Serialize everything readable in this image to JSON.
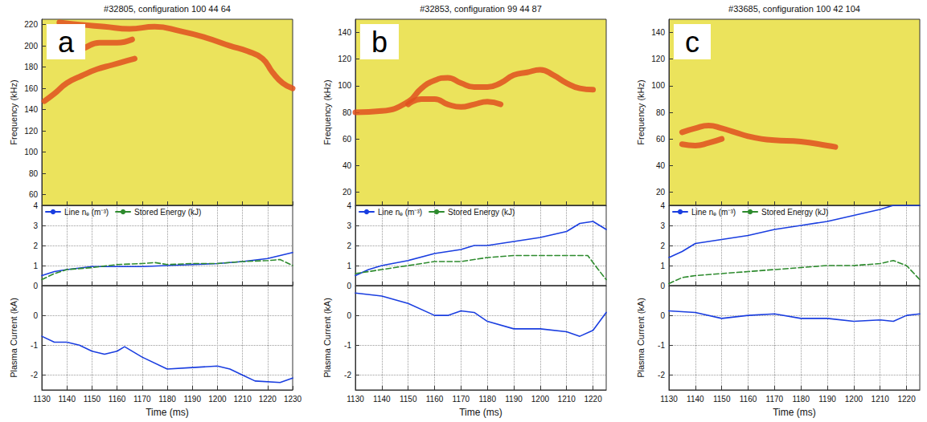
{
  "chart_data": [
    {
      "type": "spectrogram",
      "title": "#32805, configuration 100 44 64",
      "annotations": [
        "a"
      ],
      "ylabel": "Frequency (kHz)",
      "xlim": [
        1130,
        1230
      ],
      "xticks": [
        1130,
        1140,
        1150,
        1160,
        1170,
        1180,
        1190,
        1200,
        1210,
        1220,
        1230
      ],
      "ylim": [
        50,
        225
      ],
      "yticks": [
        60,
        80,
        100,
        120,
        140,
        160,
        180,
        200,
        220
      ],
      "grid": false,
      "tick_labels": "y",
      "series": [
        {
          "color": "#e0501e",
          "line_style": "solid",
          "marker": "none",
          "x": [
            1137,
            1145,
            1155,
            1165,
            1175,
            1185,
            1195,
            1205,
            1212,
            1218,
            1222,
            1226,
            1230
          ],
          "values": [
            222,
            220,
            218,
            216,
            218,
            214,
            208,
            200,
            195,
            188,
            175,
            165,
            160
          ]
        },
        {
          "color": "#e0501e",
          "line_style": "solid",
          "marker": "none",
          "x": [
            1140,
            1147,
            1153,
            1160,
            1166
          ],
          "values": [
            190,
            198,
            203,
            203,
            206
          ]
        },
        {
          "color": "#e0501e",
          "line_style": "solid",
          "marker": "none",
          "x": [
            1131,
            1135,
            1140,
            1146,
            1152,
            1158,
            1164,
            1167
          ],
          "values": [
            148,
            155,
            165,
            172,
            178,
            182,
            186,
            188
          ]
        }
      ]
    },
    {
      "type": "line",
      "xlim": [
        1130,
        1230
      ],
      "xticks": [
        1130,
        1140,
        1150,
        1160,
        1170,
        1180,
        1190,
        1200,
        1210,
        1220,
        1230
      ],
      "ylim": [
        0,
        4
      ],
      "yticks": [
        0,
        1,
        2,
        3,
        4
      ],
      "grid": true,
      "tick_labels": "y",
      "legend": "upper left",
      "series": [
        {
          "name": "Line nₑ (m⁻³)",
          "color": "#1a3ee0",
          "line_style": "solid",
          "marker": "none",
          "x": [
            1130,
            1135,
            1140,
            1150,
            1160,
            1170,
            1180,
            1190,
            1200,
            1210,
            1220,
            1230
          ],
          "values": [
            0.5,
            0.7,
            0.8,
            0.95,
            0.95,
            0.95,
            1.0,
            1.05,
            1.1,
            1.2,
            1.35,
            1.65
          ]
        },
        {
          "name": "Stored Energy (kJ)",
          "color": "#2e8b2e",
          "line_style": "dashed",
          "marker": "none",
          "x": [
            1130,
            1135,
            1140,
            1150,
            1160,
            1170,
            1175,
            1180,
            1190,
            1200,
            1210,
            1220,
            1225,
            1230
          ],
          "values": [
            0.3,
            0.6,
            0.8,
            0.9,
            1.05,
            1.1,
            1.15,
            1.05,
            1.1,
            1.1,
            1.2,
            1.25,
            1.3,
            1.0
          ]
        }
      ]
    },
    {
      "type": "line",
      "xlabel": "Time (ms)",
      "ylabel": "Plasma Current (kA)",
      "xlim": [
        1130,
        1230
      ],
      "xticks": [
        1130,
        1140,
        1150,
        1160,
        1170,
        1180,
        1190,
        1200,
        1210,
        1220,
        1230
      ],
      "ylim": [
        -2.5,
        1
      ],
      "yticks": [
        -2,
        -1,
        0
      ],
      "grid": true,
      "series": [
        {
          "color": "#1a3ee0",
          "line_style": "solid",
          "marker": "none",
          "x": [
            1130,
            1135,
            1140,
            1145,
            1150,
            1155,
            1160,
            1163,
            1170,
            1180,
            1190,
            1200,
            1205,
            1210,
            1215,
            1225,
            1230
          ],
          "values": [
            -0.7,
            -0.9,
            -0.9,
            -1.0,
            -1.2,
            -1.3,
            -1.2,
            -1.05,
            -1.4,
            -1.8,
            -1.75,
            -1.7,
            -1.8,
            -2.0,
            -2.2,
            -2.25,
            -2.1
          ]
        }
      ]
    },
    {
      "type": "spectrogram",
      "title": "#32853, configuration 99 44 87",
      "annotations": [
        "b"
      ],
      "ylabel": "Frequency (kHz)",
      "xlim": [
        1130,
        1225
      ],
      "xticks": [
        1130,
        1140,
        1150,
        1160,
        1170,
        1180,
        1190,
        1200,
        1210,
        1220
      ],
      "ylim": [
        10,
        150
      ],
      "yticks": [
        20,
        40,
        60,
        80,
        100,
        120,
        140
      ],
      "grid": false,
      "tick_labels": "y",
      "series": [
        {
          "color": "#e0501e",
          "line_style": "solid",
          "marker": "none",
          "x": [
            1130,
            1140,
            1150,
            1155,
            1160,
            1165,
            1170,
            1175,
            1180,
            1185,
            1190,
            1195,
            1200,
            1205,
            1210,
            1215,
            1220
          ],
          "values": [
            80,
            81,
            88,
            98,
            104,
            106,
            102,
            99,
            99,
            102,
            108,
            110,
            112,
            108,
            102,
            98,
            97
          ]
        },
        {
          "color": "#e0501e",
          "line_style": "solid",
          "marker": "none",
          "x": [
            1150,
            1155,
            1160,
            1165,
            1170,
            1175,
            1180,
            1185
          ],
          "values": [
            86,
            90,
            90,
            86,
            84,
            86,
            88,
            86
          ]
        }
      ]
    },
    {
      "type": "line",
      "xlim": [
        1130,
        1225
      ],
      "xticks": [
        1130,
        1140,
        1150,
        1160,
        1170,
        1180,
        1190,
        1200,
        1210,
        1220
      ],
      "ylim": [
        0,
        4
      ],
      "yticks": [
        0,
        1,
        2,
        3,
        4
      ],
      "grid": true,
      "tick_labels": "y",
      "legend": "upper left",
      "series": [
        {
          "name": "Line nₑ (m⁻³)",
          "color": "#1a3ee0",
          "line_style": "solid",
          "marker": "none",
          "x": [
            1130,
            1135,
            1140,
            1150,
            1160,
            1170,
            1175,
            1180,
            1190,
            1200,
            1210,
            1215,
            1220,
            1225
          ],
          "values": [
            0.5,
            0.8,
            1.0,
            1.25,
            1.6,
            1.8,
            2.0,
            2.0,
            2.2,
            2.4,
            2.7,
            3.1,
            3.2,
            2.8
          ]
        },
        {
          "name": "Stored Energy (kJ)",
          "color": "#2e8b2e",
          "line_style": "dashed",
          "marker": "none",
          "x": [
            1130,
            1140,
            1150,
            1160,
            1170,
            1180,
            1190,
            1200,
            1210,
            1218,
            1222,
            1225
          ],
          "values": [
            0.6,
            0.8,
            1.0,
            1.2,
            1.2,
            1.4,
            1.5,
            1.5,
            1.5,
            1.5,
            0.8,
            0.3
          ]
        }
      ]
    },
    {
      "type": "line",
      "xlabel": "Time (ms)",
      "ylabel": "Plasma Current (kA)",
      "xlim": [
        1130,
        1225
      ],
      "xticks": [
        1130,
        1140,
        1150,
        1160,
        1170,
        1180,
        1190,
        1200,
        1210,
        1220
      ],
      "ylim": [
        -2.5,
        1
      ],
      "yticks": [
        -2,
        -1,
        0
      ],
      "grid": true,
      "series": [
        {
          "color": "#1a3ee0",
          "line_style": "solid",
          "marker": "none",
          "x": [
            1130,
            1140,
            1150,
            1160,
            1165,
            1170,
            1175,
            1180,
            1190,
            1200,
            1210,
            1215,
            1220,
            1225
          ],
          "values": [
            0.75,
            0.65,
            0.4,
            0.0,
            0.0,
            0.15,
            0.1,
            -0.2,
            -0.45,
            -0.45,
            -0.55,
            -0.7,
            -0.5,
            0.1
          ]
        }
      ]
    },
    {
      "type": "spectrogram",
      "title": "#33685, configuration 100 42 104",
      "annotations": [
        "c"
      ],
      "ylabel": "Frequency (kHz)",
      "xlim": [
        1130,
        1225
      ],
      "xticks": [
        1130,
        1140,
        1150,
        1160,
        1170,
        1180,
        1190,
        1200,
        1210,
        1220
      ],
      "ylim": [
        10,
        150
      ],
      "yticks": [
        20,
        40,
        60,
        80,
        100,
        120,
        140
      ],
      "grid": false,
      "tick_labels": "y",
      "series": [
        {
          "color": "#e0501e",
          "line_style": "solid",
          "marker": "none",
          "x": [
            1135,
            1140,
            1145,
            1150,
            1155,
            1160,
            1165,
            1170,
            1180,
            1190,
            1193
          ],
          "values": [
            65,
            68,
            70,
            68,
            65,
            62,
            60,
            59,
            58,
            55,
            54
          ]
        },
        {
          "color": "#e0501e",
          "line_style": "solid",
          "marker": "none",
          "x": [
            1135,
            1140,
            1145,
            1150
          ],
          "values": [
            56,
            55,
            57,
            60
          ]
        }
      ]
    },
    {
      "type": "line",
      "xlim": [
        1130,
        1225
      ],
      "xticks": [
        1130,
        1140,
        1150,
        1160,
        1170,
        1180,
        1190,
        1200,
        1210,
        1220
      ],
      "ylim": [
        0,
        4
      ],
      "yticks": [
        0,
        1,
        2,
        3,
        4
      ],
      "grid": true,
      "tick_labels": "y",
      "legend": "upper left",
      "series": [
        {
          "name": "Line nₑ (m⁻³)",
          "color": "#1a3ee0",
          "line_style": "solid",
          "marker": "none",
          "x": [
            1130,
            1135,
            1140,
            1150,
            1160,
            1170,
            1180,
            1190,
            1200,
            1210,
            1215,
            1225
          ],
          "values": [
            1.4,
            1.7,
            2.1,
            2.3,
            2.5,
            2.8,
            3.0,
            3.2,
            3.5,
            3.8,
            4.0,
            4.0
          ]
        },
        {
          "name": "Stored Energy (kJ)",
          "color": "#2e8b2e",
          "line_style": "dashed",
          "marker": "none",
          "x": [
            1130,
            1135,
            1140,
            1150,
            1160,
            1170,
            1180,
            1190,
            1200,
            1210,
            1215,
            1220,
            1225
          ],
          "values": [
            0.1,
            0.4,
            0.5,
            0.6,
            0.7,
            0.8,
            0.9,
            1.0,
            1.0,
            1.1,
            1.25,
            1.0,
            0.3
          ]
        }
      ]
    },
    {
      "type": "line",
      "xlabel": "Time (ms)",
      "ylabel": "Plasma Current (kA)",
      "xlim": [
        1130,
        1225
      ],
      "xticks": [
        1130,
        1140,
        1150,
        1160,
        1170,
        1180,
        1190,
        1200,
        1210,
        1220
      ],
      "ylim": [
        -2.5,
        1
      ],
      "yticks": [
        -2,
        -1,
        0
      ],
      "grid": true,
      "series": [
        {
          "color": "#1a3ee0",
          "line_style": "solid",
          "marker": "none",
          "x": [
            1130,
            1140,
            1150,
            1160,
            1170,
            1180,
            1190,
            1200,
            1210,
            1215,
            1220,
            1225
          ],
          "values": [
            0.15,
            0.1,
            -0.1,
            0.0,
            0.05,
            -0.1,
            -0.1,
            -0.2,
            -0.15,
            -0.2,
            0.0,
            0.05
          ]
        }
      ]
    }
  ]
}
